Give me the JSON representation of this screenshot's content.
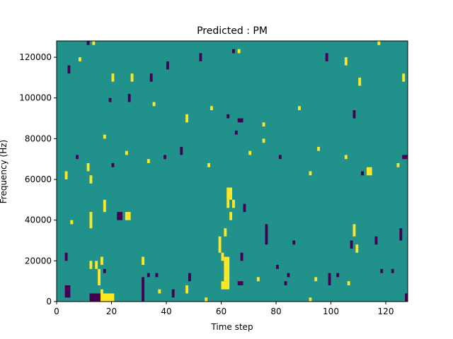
{
  "chart_data": {
    "type": "heatmap",
    "title": "Predicted : PM",
    "xlabel": "Time step",
    "ylabel": "Frequency (Hz)",
    "xlim": [
      0,
      128
    ],
    "ylim": [
      0,
      128000
    ],
    "x_ticks": [
      0,
      20,
      40,
      60,
      80,
      100,
      120
    ],
    "y_ticks": [
      0,
      20000,
      40000,
      60000,
      80000,
      100000,
      120000
    ],
    "x_tick_labels": [
      "0",
      "20",
      "40",
      "60",
      "80",
      "100",
      "120"
    ],
    "y_tick_labels": [
      "0",
      "20000",
      "40000",
      "60000",
      "80000",
      "100000",
      "120000"
    ],
    "grid": false,
    "n_time_steps": 128,
    "n_freq_bins": 64,
    "bin_height_hz": 2000,
    "colormap": {
      "low": "#440154",
      "mid": "#21918c",
      "high": "#fde725"
    },
    "background_level": "mid",
    "events": [
      {
        "t": 3,
        "f": 2000,
        "len": 2,
        "level": "low",
        "span": 3
      },
      {
        "t": 12,
        "f": 0,
        "len": 4,
        "level": "low",
        "span": 2
      },
      {
        "t": 16,
        "f": 0,
        "len": 5,
        "level": "high",
        "span": 2
      },
      {
        "t": 16,
        "f": 4000,
        "len": 1,
        "level": "high",
        "span": 1
      },
      {
        "t": 15,
        "f": 8000,
        "len": 1,
        "level": "high",
        "span": 4
      },
      {
        "t": 12,
        "f": 16000,
        "len": 1,
        "level": "high",
        "span": 2
      },
      {
        "t": 14,
        "f": 16000,
        "len": 1,
        "level": "high",
        "span": 2
      },
      {
        "t": 16,
        "f": 18000,
        "len": 1,
        "level": "high",
        "span": 2
      },
      {
        "t": 17,
        "f": 14000,
        "len": 1,
        "level": "low",
        "span": 1
      },
      {
        "t": 31,
        "f": 0,
        "len": 1,
        "level": "low",
        "span": 6
      },
      {
        "t": 31,
        "f": 18000,
        "len": 1,
        "level": "high",
        "span": 2
      },
      {
        "t": 33,
        "f": 12000,
        "len": 1,
        "level": "low",
        "span": 1
      },
      {
        "t": 36,
        "f": 12000,
        "len": 1,
        "level": "low",
        "span": 1
      },
      {
        "t": 37,
        "f": 4000,
        "len": 1,
        "level": "high",
        "span": 1
      },
      {
        "t": 42,
        "f": 2000,
        "len": 1,
        "level": "low",
        "span": 2
      },
      {
        "t": 54,
        "f": 0,
        "len": 1,
        "level": "high",
        "span": 1
      },
      {
        "t": 47,
        "f": 4000,
        "len": 1,
        "level": "high",
        "span": 2
      },
      {
        "t": 48,
        "f": 10000,
        "len": 1,
        "level": "low",
        "span": 2
      },
      {
        "t": 60,
        "f": 6000,
        "len": 3,
        "level": "high",
        "span": 2
      },
      {
        "t": 61,
        "f": 10000,
        "len": 2,
        "level": "high",
        "span": 6
      },
      {
        "t": 60,
        "f": 20000,
        "len": 1,
        "level": "high",
        "span": 2
      },
      {
        "t": 59,
        "f": 24000,
        "len": 1,
        "level": "high",
        "span": 4
      },
      {
        "t": 61,
        "f": 32000,
        "len": 1,
        "level": "high",
        "span": 2
      },
      {
        "t": 63,
        "f": 40000,
        "len": 1,
        "level": "high",
        "span": 2
      },
      {
        "t": 62,
        "f": 46000,
        "len": 1,
        "level": "high",
        "span": 2
      },
      {
        "t": 62,
        "f": 50000,
        "len": 2,
        "level": "high",
        "span": 3
      },
      {
        "t": 64,
        "f": 46000,
        "len": 1,
        "level": "high",
        "span": 2
      },
      {
        "t": 66,
        "f": 8000,
        "len": 2,
        "level": "low",
        "span": 1
      },
      {
        "t": 67,
        "f": 20000,
        "len": 1,
        "level": "low",
        "span": 2
      },
      {
        "t": 68,
        "f": 44000,
        "len": 1,
        "level": "low",
        "span": 2
      },
      {
        "t": 66,
        "f": 88000,
        "len": 2,
        "level": "low",
        "span": 1
      },
      {
        "t": 56,
        "f": 94000,
        "len": 1,
        "level": "high",
        "span": 1
      },
      {
        "t": 75,
        "f": 78000,
        "len": 1,
        "level": "high",
        "span": 1
      },
      {
        "t": 75,
        "f": 86000,
        "len": 1,
        "level": "high",
        "span": 1
      },
      {
        "t": 76,
        "f": 28000,
        "len": 1,
        "level": "low",
        "span": 5
      },
      {
        "t": 73,
        "f": 10000,
        "len": 1,
        "level": "high",
        "span": 1
      },
      {
        "t": 83,
        "f": 8000,
        "len": 1,
        "level": "low",
        "span": 1
      },
      {
        "t": 84,
        "f": 12000,
        "len": 1,
        "level": "low",
        "span": 1
      },
      {
        "t": 80,
        "f": 16000,
        "len": 1,
        "level": "low",
        "span": 1
      },
      {
        "t": 86,
        "f": 28000,
        "len": 1,
        "level": "low",
        "span": 1
      },
      {
        "t": 92,
        "f": 0,
        "len": 1,
        "level": "high",
        "span": 1
      },
      {
        "t": 94,
        "f": 10000,
        "len": 1,
        "level": "high",
        "span": 1
      },
      {
        "t": 99,
        "f": 8000,
        "len": 1,
        "level": "low",
        "span": 3
      },
      {
        "t": 102,
        "f": 12000,
        "len": 1,
        "level": "low",
        "span": 1
      },
      {
        "t": 106,
        "f": 8000,
        "len": 1,
        "level": "high",
        "span": 1
      },
      {
        "t": 107,
        "f": 26000,
        "len": 1,
        "level": "low",
        "span": 2
      },
      {
        "t": 108,
        "f": 32000,
        "len": 1,
        "level": "high",
        "span": 3
      },
      {
        "t": 109,
        "f": 24000,
        "len": 1,
        "level": "high",
        "span": 2
      },
      {
        "t": 116,
        "f": 28000,
        "len": 1,
        "level": "low",
        "span": 2
      },
      {
        "t": 118,
        "f": 14000,
        "len": 1,
        "level": "low",
        "span": 1
      },
      {
        "t": 122,
        "f": 14000,
        "len": 1,
        "level": "low",
        "span": 1
      },
      {
        "t": 125,
        "f": 30000,
        "len": 1,
        "level": "low",
        "span": 3
      },
      {
        "t": 127,
        "f": 0,
        "len": 1,
        "level": "low",
        "span": 2
      },
      {
        "t": 22,
        "f": 40000,
        "len": 2,
        "level": "low",
        "span": 2
      },
      {
        "t": 25,
        "f": 40000,
        "len": 2,
        "level": "high",
        "span": 2
      },
      {
        "t": 17,
        "f": 44000,
        "len": 1,
        "level": "high",
        "span": 3
      },
      {
        "t": 12,
        "f": 36000,
        "len": 1,
        "level": "high",
        "span": 4
      },
      {
        "t": 5,
        "f": 38000,
        "len": 1,
        "level": "high",
        "span": 1
      },
      {
        "t": 3,
        "f": 20000,
        "len": 1,
        "level": "low",
        "span": 2
      },
      {
        "t": 3,
        "f": 60000,
        "len": 1,
        "level": "high",
        "span": 2
      },
      {
        "t": 7,
        "f": 70000,
        "len": 1,
        "level": "low",
        "span": 1
      },
      {
        "t": 11,
        "f": 64000,
        "len": 1,
        "level": "high",
        "span": 2
      },
      {
        "t": 12,
        "f": 58000,
        "len": 1,
        "level": "high",
        "span": 2
      },
      {
        "t": 20,
        "f": 66000,
        "len": 1,
        "level": "low",
        "span": 1
      },
      {
        "t": 25,
        "f": 72000,
        "len": 1,
        "level": "high",
        "span": 1
      },
      {
        "t": 33,
        "f": 68000,
        "len": 1,
        "level": "high",
        "span": 1
      },
      {
        "t": 39,
        "f": 70000,
        "len": 1,
        "level": "low",
        "span": 1
      },
      {
        "t": 45,
        "f": 72000,
        "len": 1,
        "level": "low",
        "span": 2
      },
      {
        "t": 55,
        "f": 66000,
        "len": 1,
        "level": "high",
        "span": 1
      },
      {
        "t": 62,
        "f": 90000,
        "len": 1,
        "level": "low",
        "span": 1
      },
      {
        "t": 65,
        "f": 82000,
        "len": 1,
        "level": "low",
        "span": 1
      },
      {
        "t": 70,
        "f": 72000,
        "len": 1,
        "level": "high",
        "span": 1
      },
      {
        "t": 81,
        "f": 70000,
        "len": 1,
        "level": "low",
        "span": 1
      },
      {
        "t": 92,
        "f": 62000,
        "len": 1,
        "level": "high",
        "span": 1
      },
      {
        "t": 105,
        "f": 70000,
        "len": 1,
        "level": "high",
        "span": 1
      },
      {
        "t": 113,
        "f": 62000,
        "len": 2,
        "level": "high",
        "span": 2
      },
      {
        "t": 111,
        "f": 62000,
        "len": 1,
        "level": "low",
        "span": 1
      },
      {
        "t": 124,
        "f": 66000,
        "len": 1,
        "level": "high",
        "span": 1
      },
      {
        "t": 126,
        "f": 70000,
        "len": 2,
        "level": "low",
        "span": 1
      },
      {
        "t": 4,
        "f": 112000,
        "len": 1,
        "level": "low",
        "span": 2
      },
      {
        "t": 8,
        "f": 118000,
        "len": 1,
        "level": "high",
        "span": 1
      },
      {
        "t": 11,
        "f": 126000,
        "len": 1,
        "level": "low",
        "span": 1
      },
      {
        "t": 13,
        "f": 126000,
        "len": 1,
        "level": "high",
        "span": 1
      },
      {
        "t": 20,
        "f": 108000,
        "len": 1,
        "level": "high",
        "span": 2
      },
      {
        "t": 27,
        "f": 108000,
        "len": 1,
        "level": "high",
        "span": 2
      },
      {
        "t": 34,
        "f": 108000,
        "len": 1,
        "level": "low",
        "span": 2
      },
      {
        "t": 40,
        "f": 114000,
        "len": 1,
        "level": "low",
        "span": 2
      },
      {
        "t": 52,
        "f": 118000,
        "len": 1,
        "level": "low",
        "span": 2
      },
      {
        "t": 64,
        "f": 122000,
        "len": 1,
        "level": "low",
        "span": 1
      },
      {
        "t": 66,
        "f": 122000,
        "len": 1,
        "level": "high",
        "span": 1
      },
      {
        "t": 98,
        "f": 118000,
        "len": 1,
        "level": "low",
        "span": 2
      },
      {
        "t": 105,
        "f": 116000,
        "len": 1,
        "level": "high",
        "span": 2
      },
      {
        "t": 110,
        "f": 106000,
        "len": 1,
        "level": "high",
        "span": 2
      },
      {
        "t": 117,
        "f": 126000,
        "len": 1,
        "level": "high",
        "span": 1
      },
      {
        "t": 126,
        "f": 108000,
        "len": 1,
        "level": "high",
        "span": 2
      },
      {
        "t": 108,
        "f": 90000,
        "len": 1,
        "level": "low",
        "span": 2
      },
      {
        "t": 95,
        "f": 74000,
        "len": 1,
        "level": "high",
        "span": 1
      },
      {
        "t": 88,
        "f": 94000,
        "len": 1,
        "level": "high",
        "span": 1
      },
      {
        "t": 47,
        "f": 88000,
        "len": 1,
        "level": "high",
        "span": 2
      },
      {
        "t": 35,
        "f": 96000,
        "len": 1,
        "level": "high",
        "span": 1
      },
      {
        "t": 26,
        "f": 98000,
        "len": 1,
        "level": "low",
        "span": 2
      },
      {
        "t": 19,
        "f": 98000,
        "len": 1,
        "level": "low",
        "span": 1
      },
      {
        "t": 17,
        "f": 80000,
        "len": 1,
        "level": "high",
        "span": 1
      }
    ]
  }
}
